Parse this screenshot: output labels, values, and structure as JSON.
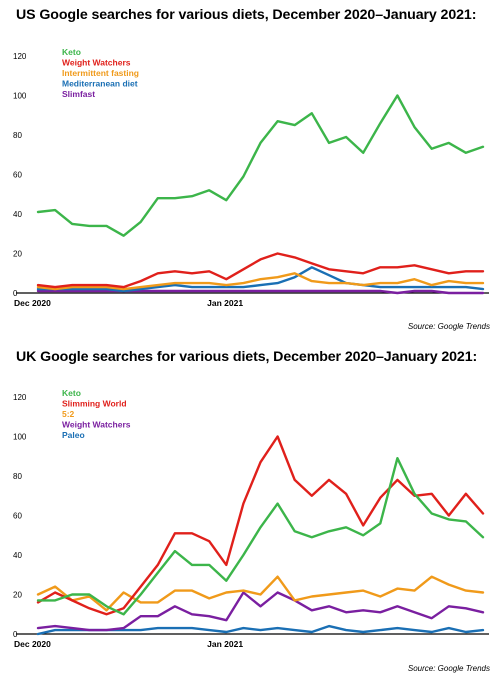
{
  "charts": [
    {
      "title": "US Google searches for various diets, December 2020–January 2021:",
      "source": "Source: Google Trends"
    },
    {
      "title": "UK Google searches for various diets, December 2020–January 2021:",
      "source": "Source: Google Trends"
    }
  ],
  "chart_data": [
    {
      "type": "line",
      "title": "US Google searches for various diets, December 2020–January 2021:",
      "xlabel": "",
      "ylabel": "",
      "ylim": [
        0,
        120
      ],
      "yticks": [
        0,
        20,
        40,
        60,
        80,
        100,
        120
      ],
      "x_tick_labels": [
        {
          "index": 0,
          "label": "Dec 2020"
        },
        {
          "index": 10,
          "label": "Jan 2021"
        }
      ],
      "grid": false,
      "legend": "top-left",
      "source": "Source: Google Trends",
      "series": [
        {
          "name": "Keto",
          "color": "#3cb54a",
          "values": [
            41,
            42,
            35,
            34,
            34,
            29,
            36,
            48,
            48,
            49,
            52,
            47,
            59,
            76,
            87,
            85,
            91,
            76,
            79,
            71,
            86,
            100,
            84,
            73,
            76,
            71,
            74
          ]
        },
        {
          "name": "Weight Watchers",
          "color": "#e0201b",
          "values": [
            4,
            3,
            4,
            4,
            4,
            3,
            6,
            10,
            11,
            10,
            11,
            7,
            12,
            17,
            20,
            18,
            15,
            12,
            11,
            10,
            13,
            13,
            14,
            12,
            10,
            11,
            11
          ]
        },
        {
          "name": "Intermittent fasting",
          "color": "#f09a1a",
          "values": [
            3,
            2,
            3,
            3,
            3,
            2,
            3,
            4,
            5,
            5,
            5,
            4,
            5,
            7,
            8,
            10,
            6,
            5,
            5,
            4,
            5,
            5,
            7,
            4,
            6,
            5,
            5
          ]
        },
        {
          "name": "Mediterranean diet",
          "color": "#1a6fb4",
          "values": [
            2,
            2,
            2,
            2,
            2,
            1,
            2,
            3,
            4,
            3,
            3,
            3,
            3,
            4,
            5,
            8,
            13,
            9,
            5,
            4,
            3,
            3,
            3,
            3,
            3,
            3,
            2
          ]
        },
        {
          "name": "Slimfast",
          "color": "#7a1fa0",
          "values": [
            1,
            1,
            1,
            1,
            1,
            1,
            1,
            1,
            1,
            1,
            1,
            1,
            1,
            1,
            1,
            1,
            1,
            1,
            1,
            1,
            1,
            0,
            1,
            1,
            0,
            0,
            0
          ]
        }
      ]
    },
    {
      "type": "line",
      "title": "UK Google searches for various diets, December 2020–January 2021:",
      "xlabel": "",
      "ylabel": "",
      "ylim": [
        0,
        120
      ],
      "yticks": [
        0,
        20,
        40,
        60,
        80,
        100,
        120
      ],
      "x_tick_labels": [
        {
          "index": 0,
          "label": "Dec 2020"
        },
        {
          "index": 10,
          "label": "Jan 2021"
        }
      ],
      "grid": false,
      "legend": "top-left",
      "source": "Source: Google Trends",
      "series": [
        {
          "name": "Keto",
          "color": "#3cb54a",
          "values": [
            17,
            17,
            20,
            20,
            14,
            10,
            20,
            31,
            42,
            35,
            35,
            27,
            40,
            54,
            66,
            52,
            49,
            52,
            54,
            50,
            56,
            89,
            71,
            61,
            58,
            57,
            49
          ]
        },
        {
          "name": "Slimming World",
          "color": "#e0201b",
          "values": [
            16,
            21,
            17,
            13,
            10,
            13,
            24,
            35,
            51,
            51,
            47,
            35,
            66,
            87,
            100,
            78,
            70,
            78,
            71,
            55,
            69,
            78,
            70,
            71,
            60,
            71,
            61
          ]
        },
        {
          "name": "5:2",
          "color": "#f09a1a",
          "values": [
            20,
            24,
            17,
            19,
            12,
            21,
            16,
            16,
            22,
            22,
            18,
            21,
            22,
            20,
            29,
            17,
            19,
            20,
            21,
            22,
            19,
            23,
            22,
            29,
            25,
            22,
            21
          ]
        },
        {
          "name": "Weight Watchers",
          "color": "#7a1fa0",
          "values": [
            3,
            4,
            3,
            2,
            2,
            3,
            9,
            9,
            14,
            10,
            9,
            7,
            21,
            14,
            21,
            17,
            12,
            14,
            11,
            12,
            11,
            14,
            11,
            8,
            14,
            13,
            11
          ]
        },
        {
          "name": "Paleo",
          "color": "#1a6fb4",
          "values": [
            0,
            2,
            2,
            2,
            2,
            2,
            2,
            3,
            3,
            3,
            2,
            1,
            3,
            2,
            3,
            2,
            1,
            4,
            2,
            1,
            2,
            3,
            2,
            1,
            3,
            1,
            2
          ]
        }
      ]
    }
  ]
}
